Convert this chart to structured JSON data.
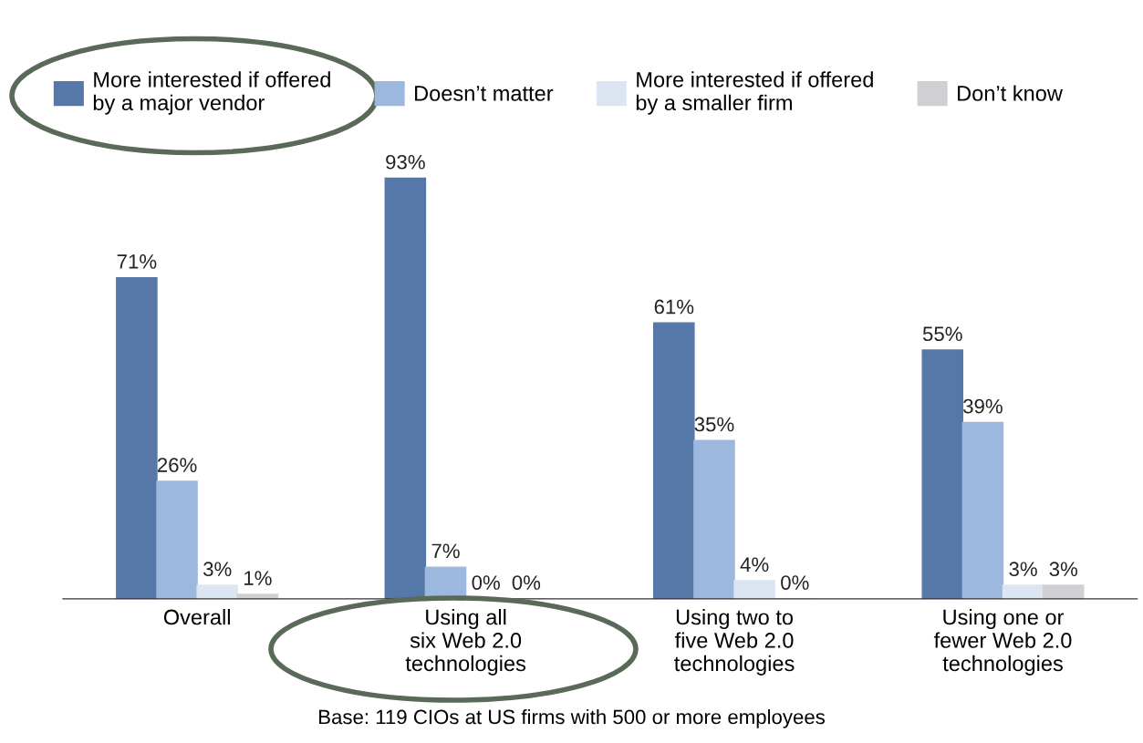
{
  "chart_data": {
    "type": "bar",
    "categories": [
      "Overall",
      "Using all\nsix Web 2.0\ntechnologies",
      "Using two to\nfive Web 2.0\ntechnologies",
      "Using one or\nfewer Web 2.0\ntechnologies"
    ],
    "series": [
      {
        "name": "More interested if offered\nby a major vendor",
        "color": "#5578a8",
        "values": [
          71,
          93,
          61,
          55
        ],
        "value_labels": [
          "71%",
          "93%",
          "61%",
          "55%"
        ]
      },
      {
        "name": "Doesn’t matter",
        "color": "#9db8de",
        "values": [
          26,
          7,
          35,
          39
        ],
        "value_labels": [
          "26%",
          "7%",
          "35%",
          "39%"
        ]
      },
      {
        "name": "More interested if offered\nby a smaller firm",
        "color": "#dce6f2",
        "values": [
          3,
          0,
          4,
          3
        ],
        "value_labels": [
          "3%",
          "0%",
          "4%",
          "3%"
        ]
      },
      {
        "name": "Don’t know",
        "color": "#d0d0d4",
        "values": [
          1,
          0,
          0,
          3
        ],
        "value_labels": [
          "1%",
          "0%",
          "0%",
          "3%"
        ]
      }
    ],
    "legend": "top",
    "tick_labels": "x",
    "annotations": [
      "Base: 119 CIOs at US firms with 500 or more employees"
    ]
  }
}
